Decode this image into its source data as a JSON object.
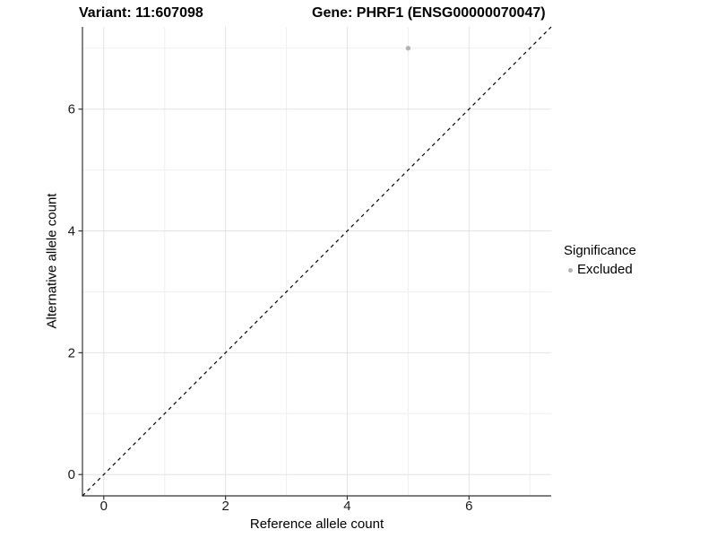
{
  "chart_data": {
    "type": "scatter",
    "title_left": "Variant: 11:607098",
    "title_right": "Gene: PHRF1 (ENSG00000070047)",
    "xlabel": "Reference allele count",
    "ylabel": "Alternative allele count",
    "xlim": [
      -0.35,
      7.35
    ],
    "ylim": [
      -0.35,
      7.35
    ],
    "x_ticks": [
      0,
      2,
      4,
      6
    ],
    "y_ticks": [
      0,
      2,
      4,
      6
    ],
    "x_minor_ticks": [
      1,
      3,
      5,
      7
    ],
    "y_minor_ticks": [
      1,
      3,
      5,
      7
    ],
    "grid": true,
    "reference_line": {
      "kind": "identity y=x",
      "style": "dashed",
      "color": "#000000"
    },
    "series": [
      {
        "name": "Excluded",
        "marker_color": "#b4b4b4",
        "points": [
          {
            "x": 5,
            "y": 7
          }
        ]
      }
    ],
    "legend": {
      "title": "Significance",
      "position": "right",
      "items": [
        {
          "label": "Excluded",
          "marker_color": "#b4b4b4"
        }
      ]
    },
    "colors": {
      "grid_major": "#e2e2e2",
      "grid_minor": "#efefef",
      "axis_line": "#333333",
      "tick_mark": "#333333",
      "tick_label": "#1a1a1a",
      "background": "#ffffff"
    }
  }
}
